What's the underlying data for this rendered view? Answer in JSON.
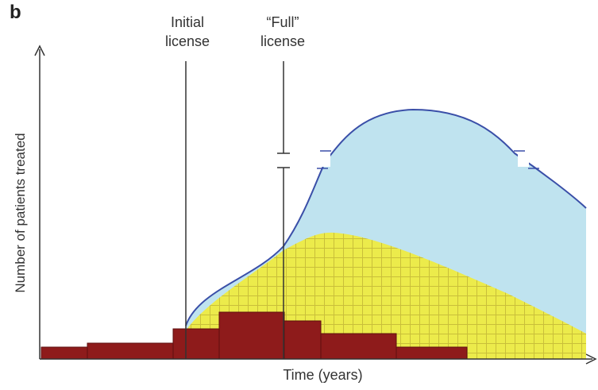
{
  "panel_label": "b",
  "markers": {
    "initial": {
      "line1": "Initial",
      "line2": "license"
    },
    "full": {
      "line1": "“Full”",
      "line2": "license"
    }
  },
  "axes": {
    "xlabel": "Time (years)",
    "ylabel": "Number of patients treated"
  },
  "colors": {
    "blue_area_fill": "#bfe3ef",
    "blue_outline": "#3a4fa8",
    "yellow_area_fill": "#eceb4b",
    "yellow_grid": "#c9bf3a",
    "bars_fill": "#8e1b1b",
    "axis": "#333333"
  }
}
